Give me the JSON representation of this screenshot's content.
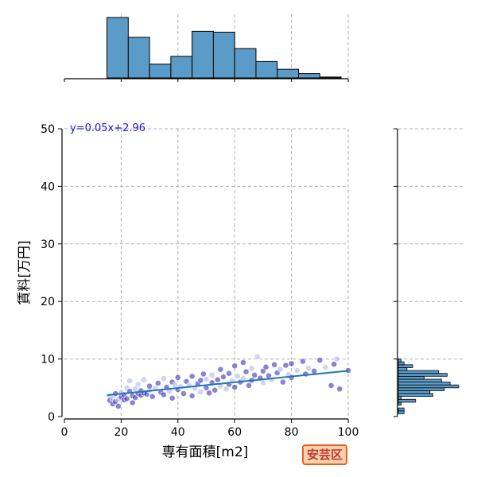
{
  "chart_data": {
    "type": "scatter",
    "xlabel": "専有面積[m2]",
    "ylabel": "賃料[万円]",
    "xlim": [
      0,
      100
    ],
    "ylim": [
      0,
      50
    ],
    "xticks": [
      0,
      20,
      40,
      60,
      80,
      100
    ],
    "yticks": [
      0,
      10,
      20,
      30,
      40,
      50
    ],
    "grid": true,
    "regression": {
      "slope": 0.05,
      "intercept": 2.96,
      "label": "y=0.05x+2.96",
      "x_range": [
        15,
        100
      ]
    },
    "colors": {
      "points_dark": "#2a1fb0",
      "points_light": "#a9b0e8",
      "line": "#1f77b4",
      "hist": "#5b9bc8",
      "label": "#1a1acc"
    },
    "points": [
      [
        16,
        3.6
      ],
      [
        16,
        2.8
      ],
      [
        17,
        2.2
      ],
      [
        17,
        3.2
      ],
      [
        18,
        2.6
      ],
      [
        18,
        4.0
      ],
      [
        19,
        3.0
      ],
      [
        19,
        1.8
      ],
      [
        20,
        3.4
      ],
      [
        20,
        4.2
      ],
      [
        21,
        2.9
      ],
      [
        21,
        3.8
      ],
      [
        22,
        5.0
      ],
      [
        22,
        3.1
      ],
      [
        23,
        4.4
      ],
      [
        23,
        6.2
      ],
      [
        24,
        3.6
      ],
      [
        24,
        2.4
      ],
      [
        25,
        4.8
      ],
      [
        25,
        3.3
      ],
      [
        26,
        4.0
      ],
      [
        26,
        5.6
      ],
      [
        27,
        3.7
      ],
      [
        27,
        4.5
      ],
      [
        28,
        6.4
      ],
      [
        28,
        4.1
      ],
      [
        29,
        3.9
      ],
      [
        30,
        4.6
      ],
      [
        30,
        5.3
      ],
      [
        31,
        3.5
      ],
      [
        32,
        4.9
      ],
      [
        33,
        5.8
      ],
      [
        34,
        4.2
      ],
      [
        35,
        6.6
      ],
      [
        35,
        3.8
      ],
      [
        36,
        5.1
      ],
      [
        37,
        4.4
      ],
      [
        38,
        6.0
      ],
      [
        38,
        3.2
      ],
      [
        39,
        5.5
      ],
      [
        40,
        4.7
      ],
      [
        40,
        6.8
      ],
      [
        41,
        5.2
      ],
      [
        42,
        4.0
      ],
      [
        43,
        6.1
      ],
      [
        44,
        5.4
      ],
      [
        45,
        3.6
      ],
      [
        45,
        7.0
      ],
      [
        46,
        4.9
      ],
      [
        47,
        5.7
      ],
      [
        48,
        6.3
      ],
      [
        48,
        4.3
      ],
      [
        49,
        7.4
      ],
      [
        50,
        5.0
      ],
      [
        50,
        6.5
      ],
      [
        51,
        4.1
      ],
      [
        52,
        5.9
      ],
      [
        52,
        7.2
      ],
      [
        53,
        4.6
      ],
      [
        54,
        6.4
      ],
      [
        55,
        5.3
      ],
      [
        55,
        8.2
      ],
      [
        56,
        6.9
      ],
      [
        57,
        4.8
      ],
      [
        58,
        7.5
      ],
      [
        58,
        5.6
      ],
      [
        59,
        6.2
      ],
      [
        60,
        8.8
      ],
      [
        60,
        5.1
      ],
      [
        61,
        7.0
      ],
      [
        62,
        6.0
      ],
      [
        63,
        9.4
      ],
      [
        63,
        6.6
      ],
      [
        64,
        7.8
      ],
      [
        65,
        5.4
      ],
      [
        66,
        8.4
      ],
      [
        66,
        6.3
      ],
      [
        67,
        7.2
      ],
      [
        68,
        10.4
      ],
      [
        69,
        6.7
      ],
      [
        70,
        7.9
      ],
      [
        70,
        5.9
      ],
      [
        71,
        8.6
      ],
      [
        72,
        7.1
      ],
      [
        73,
        6.4
      ],
      [
        74,
        9.0
      ],
      [
        75,
        7.6
      ],
      [
        76,
        8.2
      ],
      [
        77,
        6.0
      ],
      [
        78,
        8.9
      ],
      [
        79,
        7.3
      ],
      [
        80,
        9.2
      ],
      [
        80,
        6.8
      ],
      [
        82,
        8.0
      ],
      [
        84,
        9.6
      ],
      [
        85,
        7.4
      ],
      [
        86,
        8.4
      ],
      [
        88,
        7.9
      ],
      [
        90,
        9.8
      ],
      [
        92,
        8.6
      ],
      [
        94,
        5.4
      ],
      [
        95,
        9.1
      ],
      [
        96,
        10.0
      ],
      [
        97,
        4.8
      ],
      [
        100,
        8.0
      ]
    ],
    "x_hist": {
      "bin_edges": [
        15,
        22.5,
        30,
        37.5,
        45,
        52.5,
        60,
        67.5,
        75,
        82.5,
        90,
        97.5
      ],
      "counts": [
        70,
        47,
        16,
        25,
        54,
        53,
        34,
        19,
        10,
        5,
        1
      ]
    },
    "y_hist": {
      "bin_edges": [
        0,
        0.5,
        1,
        1.5,
        2,
        2.5,
        3,
        3.5,
        4,
        4.5,
        5,
        5.5,
        6,
        6.5,
        7,
        7.5,
        8,
        8.5,
        9,
        9.5,
        10,
        10.5
      ],
      "counts": [
        0,
        2,
        2,
        0,
        1,
        6,
        1,
        12,
        11,
        16,
        21,
        18,
        15,
        9,
        17,
        14,
        3,
        5,
        2,
        1,
        0
      ]
    }
  },
  "badge": {
    "district": "安芸区"
  }
}
